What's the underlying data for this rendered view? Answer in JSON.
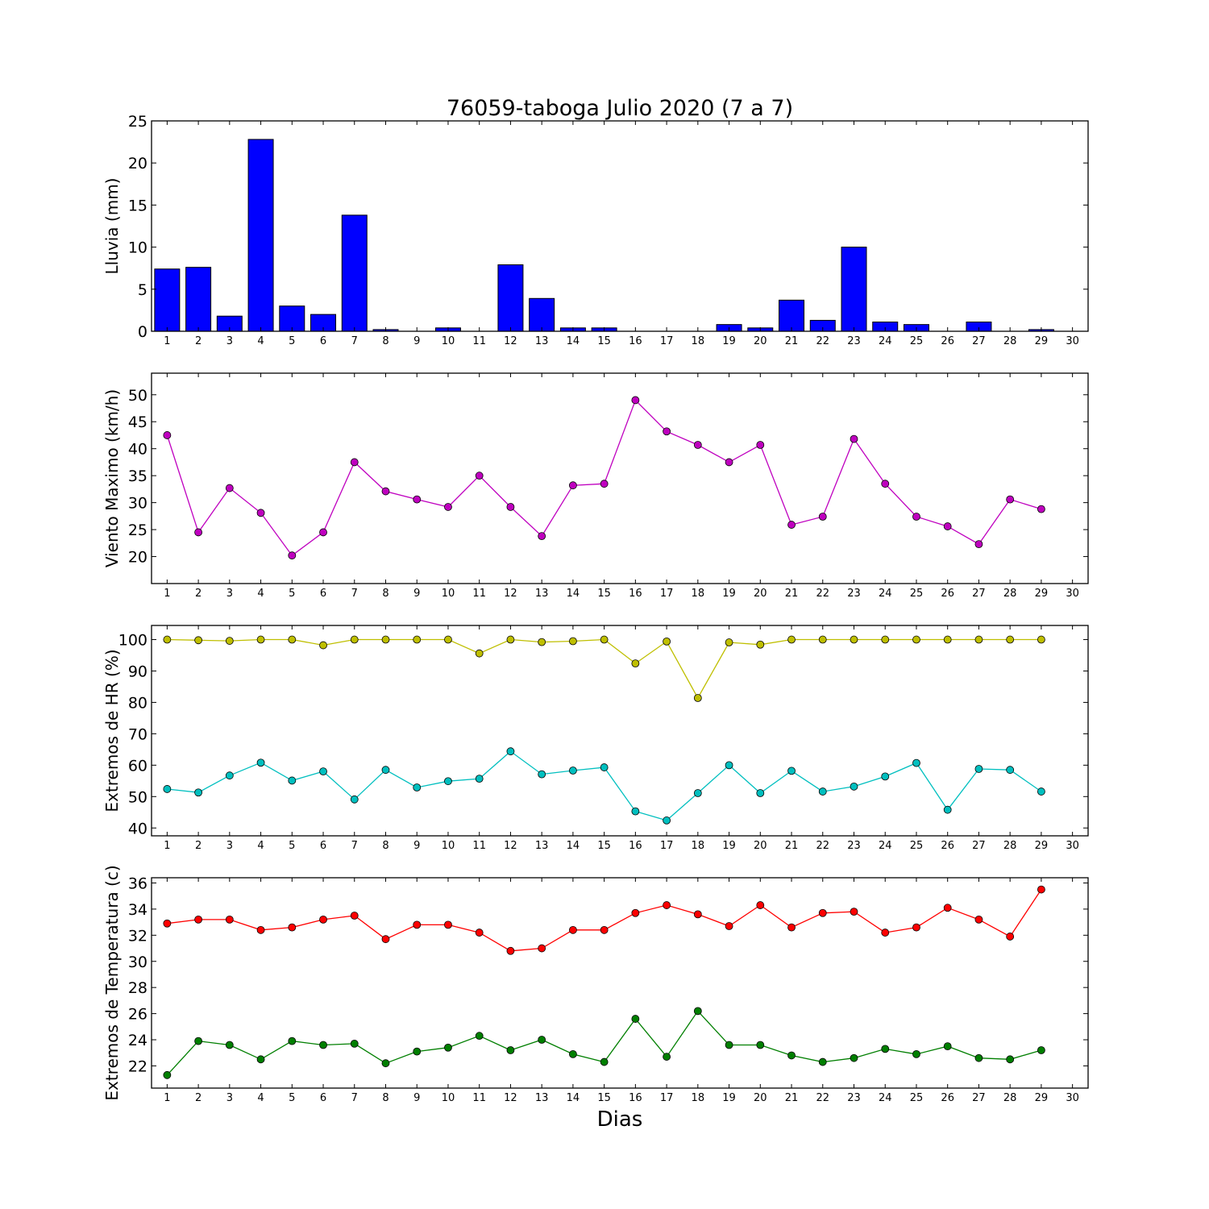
{
  "chart_data": [
    {
      "type": "bar",
      "title": "76059-taboga Julio 2020  (7 a 7)",
      "ylabel": "Lluvia (mm)",
      "xlabel": "",
      "x": [
        1,
        2,
        3,
        4,
        5,
        6,
        7,
        8,
        9,
        10,
        11,
        12,
        13,
        14,
        15,
        16,
        17,
        18,
        19,
        20,
        21,
        22,
        23,
        24,
        25,
        26,
        27,
        28,
        29,
        30
      ],
      "x_ticks": [
        1,
        2,
        3,
        4,
        5,
        6,
        7,
        8,
        9,
        10,
        11,
        12,
        13,
        14,
        15,
        16,
        17,
        18,
        19,
        20,
        21,
        22,
        23,
        24,
        25,
        26,
        27,
        28,
        29,
        30
      ],
      "xlim": [
        0.5,
        30.5
      ],
      "ylim": [
        0,
        25
      ],
      "y_ticks": [
        0,
        5,
        10,
        15,
        20,
        25
      ],
      "grid": false,
      "series": [
        {
          "color": "#0000ff",
          "values": [
            7.4,
            7.6,
            1.8,
            22.8,
            3.0,
            2.0,
            13.8,
            0.2,
            0,
            0.4,
            0,
            7.9,
            3.9,
            0.4,
            0.4,
            0,
            0,
            0,
            0.8,
            0.4,
            3.7,
            1.3,
            10.0,
            1.1,
            0.8,
            0,
            1.1,
            0,
            0.2,
            0
          ]
        }
      ]
    },
    {
      "type": "line",
      "title": "",
      "ylabel": "Viento Maximo (km/h)",
      "xlabel": "",
      "x": [
        1,
        2,
        3,
        4,
        5,
        6,
        7,
        8,
        9,
        10,
        11,
        12,
        13,
        14,
        15,
        16,
        17,
        18,
        19,
        20,
        21,
        22,
        23,
        24,
        25,
        26,
        27,
        28,
        29
      ],
      "x_ticks": [
        1,
        2,
        3,
        4,
        5,
        6,
        7,
        8,
        9,
        10,
        11,
        12,
        13,
        14,
        15,
        16,
        17,
        18,
        19,
        20,
        21,
        22,
        23,
        24,
        25,
        26,
        27,
        28,
        29,
        30
      ],
      "xlim": [
        0.5,
        30.5
      ],
      "ylim": [
        15,
        54
      ],
      "y_ticks": [
        20,
        25,
        30,
        35,
        40,
        45,
        50
      ],
      "grid": false,
      "series": [
        {
          "color": "#bf00bf",
          "values": [
            42.5,
            24.5,
            32.7,
            28.1,
            20.2,
            24.5,
            37.5,
            32.1,
            30.6,
            29.2,
            35.0,
            29.2,
            23.8,
            33.2,
            33.5,
            49.0,
            43.2,
            40.7,
            37.5,
            40.7,
            25.9,
            27.4,
            41.8,
            33.5,
            27.4,
            25.6,
            22.3,
            30.6,
            28.8
          ]
        }
      ]
    },
    {
      "type": "line",
      "title": "",
      "ylabel": "Extremos de HR (%)",
      "xlabel": "",
      "x": [
        1,
        2,
        3,
        4,
        5,
        6,
        7,
        8,
        9,
        10,
        11,
        12,
        13,
        14,
        15,
        16,
        17,
        18,
        19,
        20,
        21,
        22,
        23,
        24,
        25,
        26,
        27,
        28,
        29
      ],
      "x_ticks": [
        1,
        2,
        3,
        4,
        5,
        6,
        7,
        8,
        9,
        10,
        11,
        12,
        13,
        14,
        15,
        16,
        17,
        18,
        19,
        20,
        21,
        22,
        23,
        24,
        25,
        26,
        27,
        28,
        29,
        30
      ],
      "xlim": [
        0.5,
        30.5
      ],
      "ylim": [
        37.5,
        104.5
      ],
      "y_ticks": [
        40,
        50,
        60,
        70,
        80,
        90,
        100
      ],
      "grid": false,
      "series": [
        {
          "color": "#bfbf00",
          "values": [
            100,
            99.8,
            99.6,
            100,
            100,
            98.2,
            100,
            100,
            100,
            100,
            95.6,
            100,
            99.2,
            99.5,
            100,
            92.4,
            99.4,
            81.4,
            99.1,
            98.4,
            100,
            100,
            100,
            100,
            100,
            100,
            100,
            100,
            100
          ]
        },
        {
          "color": "#00bfbf",
          "values": [
            52.4,
            51.3,
            56.7,
            60.8,
            55.1,
            58.0,
            49.1,
            58.5,
            52.9,
            54.9,
            55.7,
            64.4,
            57.1,
            58.3,
            59.3,
            45.3,
            42.4,
            51.1,
            60.0,
            51.1,
            58.2,
            51.6,
            53.2,
            56.4,
            60.7,
            45.8,
            58.8,
            58.5,
            51.6
          ]
        }
      ]
    },
    {
      "type": "line",
      "title": "",
      "ylabel": "Extremos de Temperatura (c)",
      "xlabel": "Dias",
      "x": [
        1,
        2,
        3,
        4,
        5,
        6,
        7,
        8,
        9,
        10,
        11,
        12,
        13,
        14,
        15,
        16,
        17,
        18,
        19,
        20,
        21,
        22,
        23,
        24,
        25,
        26,
        27,
        28,
        29
      ],
      "x_ticks": [
        1,
        2,
        3,
        4,
        5,
        6,
        7,
        8,
        9,
        10,
        11,
        12,
        13,
        14,
        15,
        16,
        17,
        18,
        19,
        20,
        21,
        22,
        23,
        24,
        25,
        26,
        27,
        28,
        29,
        30
      ],
      "xlim": [
        0.5,
        30.5
      ],
      "ylim": [
        20.3,
        36.4
      ],
      "y_ticks": [
        22,
        24,
        26,
        28,
        30,
        32,
        34,
        36
      ],
      "grid": false,
      "series": [
        {
          "color": "#ff0000",
          "values": [
            32.9,
            33.2,
            33.2,
            32.4,
            32.6,
            33.2,
            33.5,
            31.7,
            32.8,
            32.8,
            32.2,
            30.8,
            31.0,
            32.4,
            32.4,
            33.7,
            34.3,
            33.6,
            32.7,
            34.3,
            32.6,
            33.7,
            33.8,
            32.2,
            32.6,
            34.1,
            33.2,
            31.9,
            35.5
          ]
        },
        {
          "color": "#007f00",
          "values": [
            21.3,
            23.9,
            23.6,
            22.5,
            23.9,
            23.6,
            23.7,
            22.2,
            23.1,
            23.4,
            24.3,
            23.2,
            24.0,
            22.9,
            22.3,
            25.6,
            22.7,
            26.2,
            23.6,
            23.6,
            22.8,
            22.3,
            22.6,
            23.3,
            22.9,
            23.5,
            22.6,
            22.5,
            23.2
          ]
        }
      ]
    }
  ]
}
